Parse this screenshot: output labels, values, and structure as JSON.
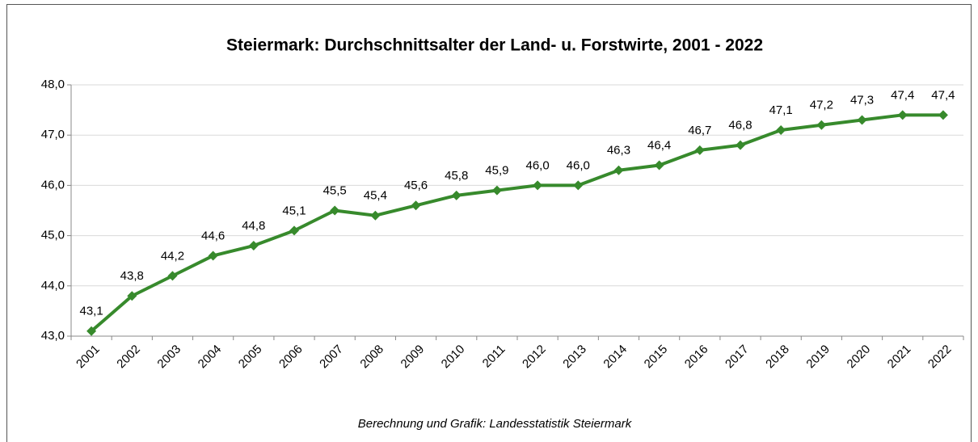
{
  "chart_data": {
    "type": "line",
    "title": "Steiermark: Durchschnittsalter der Land- u. Forstwirte, 2001 - 2022",
    "source": "Berechnung und Grafik: Landesstatistik Steiermark",
    "categories": [
      "2001",
      "2002",
      "2003",
      "2004",
      "2005",
      "2006",
      "2007",
      "2008",
      "2009",
      "2010",
      "2011",
      "2012",
      "2013",
      "2014",
      "2015",
      "2016",
      "2017",
      "2018",
      "2019",
      "2020",
      "2021",
      "2022"
    ],
    "series": [
      {
        "color": "#378a2c",
        "values": [
          43.1,
          43.8,
          44.2,
          44.6,
          44.8,
          45.1,
          45.5,
          45.4,
          45.6,
          45.8,
          45.9,
          46.0,
          46.0,
          46.3,
          46.4,
          46.7,
          46.8,
          47.1,
          47.2,
          47.3,
          47.4,
          47.4
        ],
        "value_labels": [
          "43,1",
          "43,8",
          "44,2",
          "44,6",
          "44,8",
          "45,1",
          "45,5",
          "45,4",
          "45,6",
          "45,8",
          "45,9",
          "46,0",
          "46,0",
          "46,3",
          "46,4",
          "46,7",
          "46,8",
          "47,1",
          "47,2",
          "47,3",
          "47,4",
          "47,4"
        ]
      }
    ],
    "ylim": [
      43,
      48
    ],
    "yticks": [
      {
        "value": 43,
        "label": "43,0"
      },
      {
        "value": 44,
        "label": "44,0"
      },
      {
        "value": 45,
        "label": "45,0"
      },
      {
        "value": 46,
        "label": "46,0"
      },
      {
        "value": 47,
        "label": "47,0"
      },
      {
        "value": 48,
        "label": "48,0"
      }
    ],
    "grid": true
  }
}
